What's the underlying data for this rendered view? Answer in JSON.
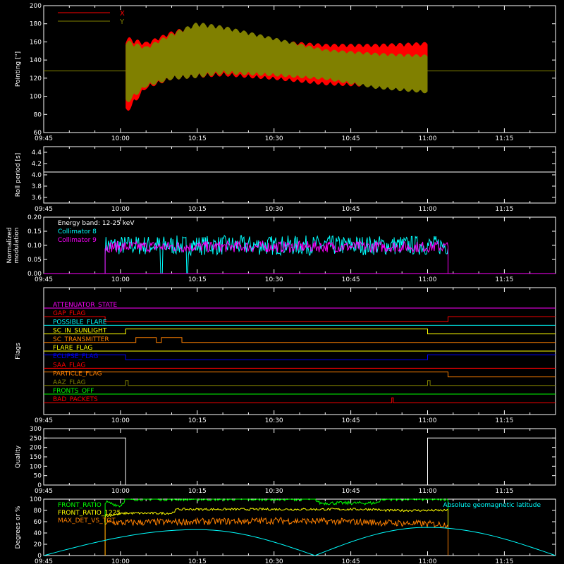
{
  "x_ticks": [
    "09:45",
    "10:00",
    "10:15",
    "10:30",
    "10:45",
    "11:00",
    "11:15"
  ],
  "colors": {
    "background": "#000000",
    "axis": "#ffffff",
    "x_red": "#ff0000",
    "y_olive": "#808000",
    "cyan": "#00ffff",
    "magenta": "#ff00ff",
    "green": "#00ff00",
    "yellow": "#ffff00",
    "orange": "#ff8000",
    "blue": "#0000ff"
  },
  "chart_data": [
    {
      "type": "area",
      "ylabel": "Pointing [\"]",
      "ylim": [
        60,
        200
      ],
      "yticks": [
        "60",
        "80",
        "100",
        "120",
        "140",
        "160",
        "180",
        "200"
      ],
      "x_range": [
        "09:45",
        "11:25"
      ],
      "legend": [
        {
          "name": "X",
          "color": "#ff0000"
        },
        {
          "name": "Y",
          "color": "#808000"
        }
      ],
      "reference_line": {
        "y": 128,
        "color": "#808000"
      },
      "series": [
        {
          "name": "X",
          "color": "#ff0000",
          "time": [
            "10:00",
            "10:05",
            "10:10",
            "10:15",
            "10:20",
            "10:30",
            "10:40",
            "10:50",
            "11:00"
          ],
          "lower": [
            72,
            108,
            118,
            120,
            122,
            118,
            112,
            110,
            110
          ],
          "upper": [
            168,
            160,
            172,
            180,
            178,
            162,
            158,
            158,
            160
          ]
        },
        {
          "name": "Y",
          "color": "#808000",
          "time": [
            "10:00",
            "10:05",
            "10:10",
            "10:15",
            "10:20",
            "10:30",
            "10:40",
            "10:50",
            "11:00"
          ],
          "lower": [
            85,
            110,
            118,
            120,
            124,
            122,
            118,
            108,
            103
          ],
          "upper": [
            165,
            155,
            170,
            182,
            178,
            165,
            152,
            148,
            146
          ]
        }
      ],
      "data_start": "10:01",
      "data_end": "11:00"
    },
    {
      "type": "line",
      "ylabel": "Roll period [s]",
      "ylim": [
        3.5,
        4.5
      ],
      "yticks": [
        "3.6",
        "3.8",
        "4.0",
        "4.2",
        "4.4"
      ],
      "series": [
        {
          "name": "",
          "color": "#ffffff",
          "time": [
            "09:45",
            "11:25"
          ],
          "values": [
            4.05,
            4.05
          ]
        }
      ]
    },
    {
      "type": "line",
      "ylabel": "Normalized modulation",
      "ylim": [
        0,
        0.2
      ],
      "yticks": [
        "0.00",
        "0.05",
        "0.10",
        "0.15",
        "0.20"
      ],
      "annotation": "Energy band: 12-25 keV",
      "series": [
        {
          "name": "Collimator 8",
          "color": "#00ffff",
          "start": "09:57",
          "end": "11:04",
          "mean": 0.1,
          "spread": 0.035,
          "dips": [
            {
              "time": "10:08",
              "value": 0.0
            },
            {
              "time": "10:13",
              "value": 0.0
            }
          ]
        },
        {
          "name": "Collimator 9",
          "color": "#ff00ff",
          "start": "09:57",
          "end": "11:04",
          "mean": 0.095,
          "spread": 0.02
        }
      ]
    },
    {
      "type": "line",
      "ylabel": "Flags",
      "flags": [
        {
          "name": "ATTENUATOR_STATE",
          "color": "#ff00ff",
          "steps": [
            [
              "09:45",
              0
            ],
            [
              "11:25",
              0
            ]
          ]
        },
        {
          "name": "GAP_FLAG",
          "color": "#ff0000",
          "steps": [
            [
              "09:45",
              0
            ],
            [
              "09:57",
              0
            ],
            [
              "09:57",
              -1
            ],
            [
              "11:04",
              -1
            ],
            [
              "11:04",
              0
            ],
            [
              "11:25",
              0
            ]
          ]
        },
        {
          "name": "POSSIBLE_FLARE",
          "color": "#00ffff",
          "steps": [
            [
              "09:45",
              0
            ],
            [
              "11:25",
              0
            ]
          ]
        },
        {
          "name": "SC_IN_SUNLIGHT",
          "color": "#ffff00",
          "steps": [
            [
              "09:45",
              0
            ],
            [
              "10:01",
              0
            ],
            [
              "10:01",
              1
            ],
            [
              "11:00",
              1
            ],
            [
              "11:00",
              0
            ],
            [
              "11:25",
              0
            ]
          ]
        },
        {
          "name": "SC_TRANSMITTER",
          "color": "#ff8000",
          "steps": [
            [
              "09:45",
              0
            ],
            [
              "10:03",
              0
            ],
            [
              "10:03",
              1
            ],
            [
              "10:07",
              1
            ],
            [
              "10:07",
              0
            ],
            [
              "10:08",
              0
            ],
            [
              "10:08",
              1
            ],
            [
              "10:12",
              1
            ],
            [
              "10:12",
              0
            ],
            [
              "11:25",
              0
            ]
          ]
        },
        {
          "name": "FLARE_FLAG",
          "color": "#ffff00",
          "steps": [
            [
              "09:45",
              0
            ],
            [
              "11:25",
              0
            ]
          ]
        },
        {
          "name": "ECLIPSE_FLAG",
          "color": "#0000ff",
          "steps": [
            [
              "09:45",
              1
            ],
            [
              "10:01",
              1
            ],
            [
              "10:01",
              0
            ],
            [
              "11:00",
              0
            ],
            [
              "11:00",
              1
            ],
            [
              "11:25",
              1
            ]
          ]
        },
        {
          "name": "SAA_FLAG",
          "color": "#ff0000",
          "steps": [
            [
              "09:45",
              0
            ],
            [
              "11:25",
              0
            ]
          ]
        },
        {
          "name": "PARTICLE_FLAG",
          "color": "#ff8000",
          "steps": [
            [
              "09:45",
              1
            ],
            [
              "11:04",
              1
            ],
            [
              "11:04",
              0
            ],
            [
              "11:25",
              0
            ]
          ]
        },
        {
          "name": "AAZ_FLAG",
          "color": "#808000",
          "steps": [
            [
              "09:45",
              0
            ],
            [
              "10:01",
              0
            ],
            [
              "10:01",
              1
            ],
            [
              "10:01.5",
              1
            ],
            [
              "10:01.5",
              0
            ],
            [
              "11:00",
              0
            ],
            [
              "11:00",
              1
            ],
            [
              "11:00.5",
              1
            ],
            [
              "11:00.5",
              0
            ],
            [
              "11:25",
              0
            ]
          ]
        },
        {
          "name": "FRONTS_OFF",
          "color": "#00ff00",
          "steps": [
            [
              "09:45",
              0
            ],
            [
              "11:25",
              0
            ]
          ]
        },
        {
          "name": "BAD_PACKETS",
          "color": "#ff0000",
          "steps": [
            [
              "09:45",
              0
            ],
            [
              "10:53",
              0
            ],
            [
              "10:53",
              1
            ],
            [
              "10:53.3",
              1
            ],
            [
              "10:53.3",
              0
            ],
            [
              "11:25",
              0
            ]
          ]
        }
      ]
    },
    {
      "type": "line",
      "ylabel": "Quality",
      "ylim": [
        0,
        300
      ],
      "yticks": [
        "0",
        "50",
        "100",
        "150",
        "200",
        "250",
        "300"
      ],
      "series": [
        {
          "name": "",
          "color": "#ffffff",
          "steps": [
            [
              "09:45",
              250
            ],
            [
              "10:01",
              250
            ],
            [
              "10:01",
              0
            ],
            [
              "11:00",
              0
            ],
            [
              "11:00",
              250
            ],
            [
              "11:25",
              250
            ]
          ]
        }
      ]
    },
    {
      "type": "line",
      "ylabel": "Degrees or %",
      "ylim": [
        0,
        100
      ],
      "yticks": [
        "0",
        "20",
        "40",
        "60",
        "80",
        "100"
      ],
      "right_label": "Absolute geomagnetic latitude",
      "series": [
        {
          "name": "FRONT_RATIO",
          "color": "#00ff00",
          "start": "09:57",
          "end": "11:04",
          "levels": [
            [
              "09:57",
              95
            ],
            [
              "10:00",
              88
            ],
            [
              "10:01",
              100
            ],
            [
              "10:38",
              100
            ],
            [
              "10:39",
              93
            ],
            [
              "10:50",
              93
            ],
            [
              "10:51",
              100
            ],
            [
              "11:04",
              100
            ]
          ],
          "spread": 3
        },
        {
          "name": "FRONT_RATIO_1225",
          "color": "#ffff00",
          "start": "09:57",
          "end": "11:04",
          "levels": [
            [
              "09:57",
              70
            ],
            [
              "10:01",
              75
            ],
            [
              "10:10",
              75
            ],
            [
              "10:11",
              82
            ],
            [
              "10:50",
              82
            ],
            [
              "10:51",
              80
            ],
            [
              "11:04",
              80
            ]
          ],
          "spread": 2
        },
        {
          "name": "MAX_DET_VS_TOT",
          "color": "#ff8000",
          "start": "09:57",
          "end": "11:04",
          "levels": [
            [
              "09:57",
              58
            ],
            [
              "10:15",
              60
            ],
            [
              "10:30",
              62
            ],
            [
              "10:45",
              60
            ],
            [
              "11:04",
              55
            ]
          ],
          "spread": 6
        },
        {
          "name": "Absolute geomagnetic latitude",
          "color": "#00ffff",
          "time": [
            "09:45",
            "10:15",
            "10:38",
            "11:00",
            "11:25"
          ],
          "values": [
            0,
            46,
            0,
            50,
            0
          ]
        }
      ]
    }
  ]
}
